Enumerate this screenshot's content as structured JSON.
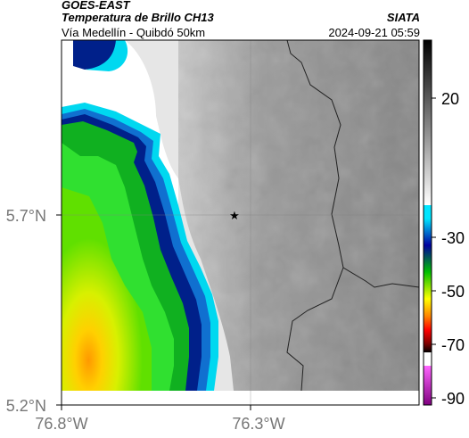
{
  "header": {
    "satellite": "GOES-EAST",
    "product": "Temperatura de Brillo CH13",
    "region": "Vía Medellín - Quibdó 50km",
    "brand": "SIATA",
    "datetime": "2024-09-21 05:59"
  },
  "map": {
    "marker": "star-marker",
    "lat_ticks": [
      "5.7°N",
      "5.2°N"
    ],
    "lon_ticks": [
      "76.8°W",
      "76.3°W"
    ],
    "gridlines": true,
    "colors": {
      "warm_gray": "#8a8a8a",
      "cold_green": "#1fc21f",
      "cold_yellow": "#e8f000",
      "cold_blue": "#00208a",
      "cyan": "#00e0ff"
    }
  },
  "colorbar": {
    "ticks": [
      "20",
      "-30",
      "-50",
      "-70",
      "-90"
    ],
    "colors": [
      "#000000",
      "#ffffff",
      "#00e5ff",
      "#0000a0",
      "#00c000",
      "#ffff00",
      "#ff8000",
      "#ff0000",
      "#800000",
      "#000000",
      "#ffffff",
      "#ff66ff",
      "#800080"
    ]
  }
}
